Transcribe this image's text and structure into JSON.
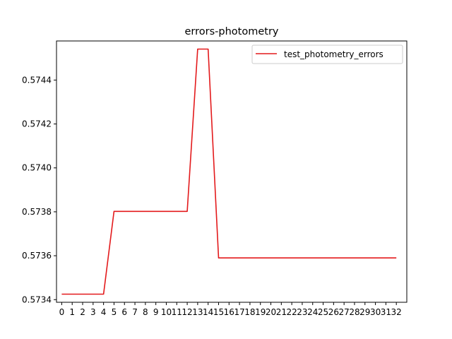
{
  "chart_data": {
    "type": "line",
    "title": "errors-photometry",
    "xlabel": "",
    "ylabel": "",
    "x": [
      0,
      1,
      2,
      3,
      4,
      5,
      6,
      7,
      8,
      9,
      10,
      11,
      12,
      13,
      14,
      15,
      16,
      17,
      18,
      19,
      20,
      21,
      22,
      23,
      24,
      25,
      26,
      27,
      28,
      29,
      30,
      31,
      32
    ],
    "series": [
      {
        "name": "test_photometry_errors",
        "color": "#e31a1c",
        "values": [
          0.573425,
          0.573425,
          0.573425,
          0.573425,
          0.573425,
          0.573802,
          0.573802,
          0.573802,
          0.573802,
          0.573802,
          0.573802,
          0.573802,
          0.573802,
          0.574541,
          0.574541,
          0.57359,
          0.57359,
          0.57359,
          0.57359,
          0.57359,
          0.57359,
          0.57359,
          0.57359,
          0.57359,
          0.57359,
          0.57359,
          0.57359,
          0.57359,
          0.57359,
          0.57359,
          0.57359,
          0.57359,
          0.57359
        ]
      }
    ],
    "xlim": [
      -0.5,
      33.0
    ],
    "ylim": [
      0.573388,
      0.574578
    ],
    "yticks": [
      0.5734,
      0.5736,
      0.5738,
      0.574,
      0.5742,
      0.5744
    ],
    "ytick_labels": [
      "0.5734",
      "0.5736",
      "0.5738",
      "0.5740",
      "0.5742",
      "0.5744"
    ],
    "xtick_labels": [
      "0",
      "1",
      "2",
      "3",
      "4",
      "5",
      "6",
      "7",
      "8",
      "9",
      "10",
      "11",
      "12",
      "13",
      "14",
      "15",
      "16",
      "17",
      "18",
      "19",
      "20",
      "21",
      "22",
      "23",
      "24",
      "25",
      "26",
      "27",
      "28",
      "29",
      "30",
      "31",
      "32"
    ],
    "grid": false,
    "legend_position": "top-right"
  }
}
